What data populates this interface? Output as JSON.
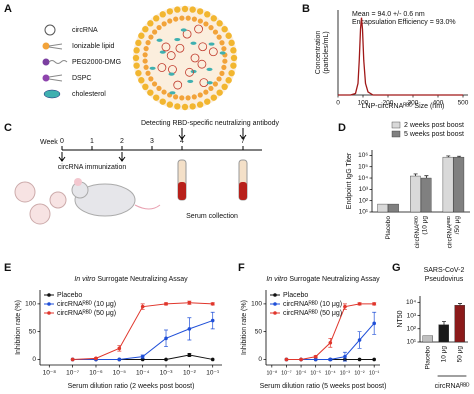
{
  "panel_a": {
    "label": "A",
    "legend": [
      "circRNA",
      "Ionizable lipid",
      "PEG2000-DMG",
      "DSPC",
      "cholesterol"
    ]
  },
  "panel_c": {
    "label": "C",
    "week_label": "Week",
    "weeks": [
      "0",
      "1",
      "2",
      "3",
      "4",
      "7"
    ],
    "immunization": "circRNA immunization",
    "detecting": "Detecting RBD-specific neutralizing antibody",
    "serum": "Serum collection"
  },
  "chart_data": [
    {
      "type": "line",
      "panel": "B",
      "ylabel": [
        "Concentration",
        "(particles/mL)"
      ],
      "xlabel": "LNP-circRNAᴿᴮᴰ Size (nm)",
      "annotations": [
        "Mean = 94.0 +/- 0.6 nm",
        "Encapsulation Efficiency = 93.0%"
      ],
      "x": [
        0,
        50,
        70,
        80,
        85,
        90,
        94,
        98,
        103,
        110,
        120,
        140,
        200,
        300,
        500
      ],
      "series": [
        {
          "color": "#a01818",
          "values": [
            0,
            0,
            0.02,
            0.15,
            0.45,
            0.85,
            1.0,
            0.85,
            0.45,
            0.15,
            0.04,
            0,
            0,
            0,
            0
          ]
        }
      ],
      "xlim": [
        0,
        520
      ],
      "ylim": [
        0,
        1.1
      ],
      "xticks": [
        0,
        100,
        200,
        300,
        400,
        500
      ]
    },
    {
      "type": "bar",
      "panel": "D",
      "ylabel": "Endpoint IgG Titer",
      "yscale": "log",
      "categories": [
        [
          "Placebo"
        ],
        [
          "circRNAᴿᴮᴰ",
          "(10 μg"
        ],
        [
          "circRNAᴿᴮᴰ",
          "/50 μg"
        ]
      ],
      "series": [
        {
          "name": "2 weeks post boost",
          "color": "#d9d9d9",
          "values": [
            50,
            15000,
            700000
          ],
          "errors": [
            0,
            8000,
            200000
          ]
        },
        {
          "name": "5 weeks post boost",
          "color": "#808080",
          "values": [
            50,
            10000,
            700000
          ],
          "errors": [
            0,
            6000,
            150000
          ]
        }
      ],
      "ylim": [
        10,
        3000000
      ],
      "yticks": [
        {
          "value": 10,
          "label": "10¹"
        },
        {
          "value": 100,
          "label": "10²"
        },
        {
          "value": 1000,
          "label": "10³"
        },
        {
          "value": 10000,
          "label": "10⁴"
        },
        {
          "value": 100000,
          "label": "10⁵"
        },
        {
          "value": 1000000,
          "label": "10⁶"
        }
      ]
    },
    {
      "type": "line",
      "panel": "E",
      "title_prefix": "In vitro",
      "title": "Surrogate Neutralizing Assay",
      "ylabel": "Inhibition rate (%)",
      "xlabel": "Serum dilution ratio (2 weeks post boost)",
      "xscale": "log",
      "markers": true,
      "x": [
        1e-07,
        1e-06,
        1e-05,
        0.0001,
        0.001,
        0.01,
        0.1
      ],
      "series": [
        {
          "name": "Placebo",
          "color": "#111111",
          "values": [
            0,
            0,
            0,
            0,
            0,
            8,
            0
          ],
          "errors": [
            0,
            0,
            0,
            0,
            0,
            3,
            0
          ]
        },
        {
          "name": "circRNAᴿᴮᴰ (10 μg)",
          "color": "#1f4fd8",
          "values": [
            0,
            0,
            0,
            5,
            38,
            55,
            70
          ],
          "errors": [
            0,
            0,
            0,
            3,
            15,
            20,
            15
          ]
        },
        {
          "name": "circRNAᴿᴮᴰ (50 μg)",
          "color": "#e0362c",
          "values": [
            0,
            2,
            20,
            95,
            100,
            102,
            100
          ],
          "errors": [
            0,
            1,
            5,
            5,
            2,
            3,
            2
          ]
        }
      ],
      "xlim": [
        4e-09,
        0.25
      ],
      "ylim": [
        -10,
        125
      ],
      "yticks": [
        0,
        50,
        100
      ],
      "xticks": [
        {
          "value": 1e-08,
          "label": "10⁻⁸"
        },
        {
          "value": 1e-07,
          "label": "10⁻⁷"
        },
        {
          "value": 1e-06,
          "label": "10⁻⁶"
        },
        {
          "value": 1e-05,
          "label": "10⁻⁵"
        },
        {
          "value": 0.0001,
          "label": "10⁻⁴"
        },
        {
          "value": 0.001,
          "label": "10⁻³"
        },
        {
          "value": 0.01,
          "label": "10⁻²"
        },
        {
          "value": 0.1,
          "label": "10⁻¹"
        }
      ]
    },
    {
      "type": "line",
      "panel": "F",
      "title_prefix": "In vitro",
      "title": "Surrogate Neutralizing Assay",
      "ylabel": "Inhibition rate (%)",
      "xlabel": "Serum dilution ratio (5 weeks post boost)",
      "xscale": "log",
      "markers": true,
      "x": [
        1e-07,
        1e-06,
        1e-05,
        0.0001,
        0.001,
        0.01,
        0.1
      ],
      "series": [
        {
          "name": "Placebo",
          "color": "#111111",
          "values": [
            0,
            0,
            0,
            0,
            0,
            0,
            0
          ],
          "errors": [
            0,
            0,
            0,
            0,
            0,
            0,
            0
          ]
        },
        {
          "name": "circRNAᴿᴮᴰ (10 μg)",
          "color": "#1f4fd8",
          "values": [
            0,
            0,
            0,
            0,
            5,
            35,
            65
          ],
          "errors": [
            0,
            0,
            0,
            2,
            8,
            15,
            20
          ]
        },
        {
          "name": "circRNAᴿᴮᴰ (50 μg)",
          "color": "#e0362c",
          "values": [
            0,
            0,
            5,
            30,
            95,
            100,
            100
          ],
          "errors": [
            0,
            0,
            2,
            8,
            5,
            2,
            2
          ]
        }
      ],
      "xlim": [
        4e-09,
        0.25
      ],
      "ylim": [
        -10,
        125
      ],
      "yticks": [
        0,
        50,
        100
      ],
      "xticks": [
        {
          "value": 1e-08,
          "label": "10⁻⁸"
        },
        {
          "value": 1e-07,
          "label": "10⁻⁷"
        },
        {
          "value": 1e-06,
          "label": "10⁻⁶"
        },
        {
          "value": 1e-05,
          "label": "10⁻⁵"
        },
        {
          "value": 0.0001,
          "label": "10⁻⁴"
        },
        {
          "value": 0.001,
          "label": "10⁻³"
        },
        {
          "value": 0.01,
          "label": "10⁻²"
        },
        {
          "value": 0.1,
          "label": "10⁻¹"
        }
      ]
    },
    {
      "type": "bar",
      "panel": "G",
      "title": [
        "SARS-CoV-2",
        "Pseudovirus"
      ],
      "ylabel": "NT50",
      "yscale": "log",
      "categories": [
        "Placebo",
        "10 μg",
        "50 μg"
      ],
      "group_label": "circRNAᴿᴮᴰ",
      "values": [
        30,
        200,
        6000
      ],
      "errors": [
        0,
        150,
        2000
      ],
      "colors": [
        "#c0c0c0",
        "#1a1a1a",
        "#8b1a1a"
      ],
      "ylim": [
        10,
        30000
      ],
      "yticks": [
        {
          "value": 10,
          "label": "10¹"
        },
        {
          "value": 100,
          "label": "10²"
        },
        {
          "value": 1000,
          "label": "10³"
        },
        {
          "value": 10000,
          "label": "10⁴"
        }
      ]
    }
  ]
}
